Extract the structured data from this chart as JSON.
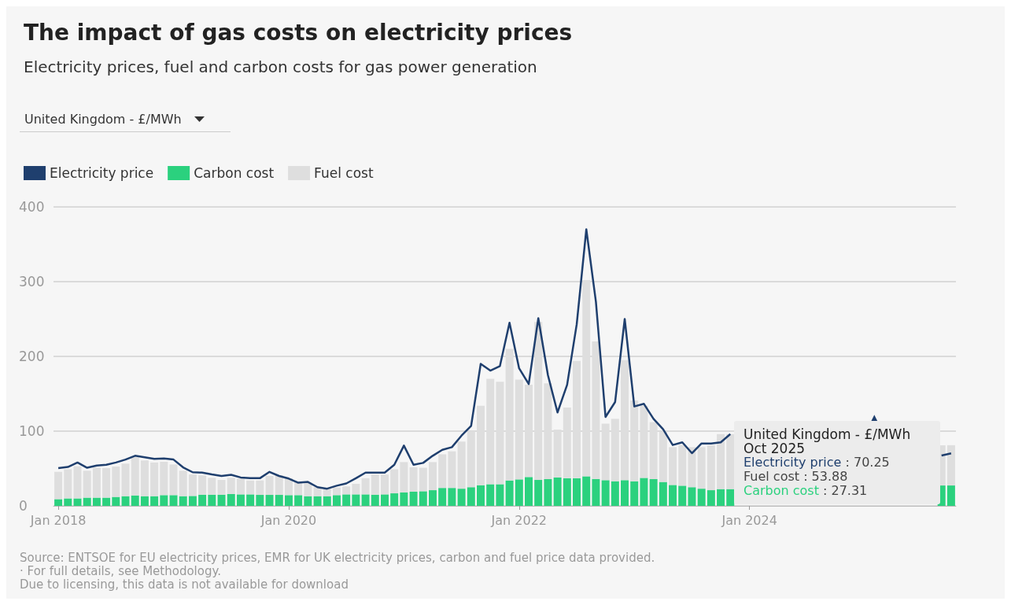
{
  "chart_data": {
    "type": "bar",
    "stacked": true,
    "title": "The impact of gas costs on electricity prices",
    "subtitle": "Electricity prices, fuel and carbon costs for gas power generation",
    "categories": [
      "Jan 2018",
      null,
      null,
      null,
      null,
      null,
      null,
      null,
      null,
      null,
      null,
      null,
      null,
      null,
      null,
      null,
      null,
      null,
      null,
      null,
      null,
      null,
      null,
      null,
      "Jan 2020",
      null,
      null,
      null,
      null,
      null,
      null,
      null,
      null,
      null,
      null,
      null,
      null,
      null,
      null,
      null,
      null,
      null,
      null,
      null,
      null,
      null,
      null,
      null,
      "Jan 2022",
      null,
      null,
      null,
      null,
      null,
      null,
      null,
      null,
      null,
      null,
      null,
      null,
      null,
      null,
      null,
      null,
      null,
      null,
      null,
      null,
      null,
      null,
      null,
      "Jan 2024",
      null,
      null,
      null,
      null,
      null,
      null,
      null,
      null,
      null,
      null,
      null,
      null,
      null,
      null,
      null,
      null,
      null,
      null,
      null,
      null,
      null
    ],
    "series": [
      {
        "name": "Carbon cost",
        "color": "#2bd17e",
        "values": [
          9,
          10,
          10,
          11,
          11,
          11,
          12,
          13,
          14,
          13,
          13,
          14.4,
          14.4,
          13,
          13.3,
          15,
          15,
          15,
          15.8,
          15.4,
          15.4,
          14.7,
          14.7,
          14.7,
          14.4,
          14.4,
          13,
          13,
          13,
          14.4,
          15.4,
          15.4,
          15.4,
          15,
          15.4,
          16.8,
          18,
          19,
          19.6,
          21,
          24,
          24,
          23,
          25,
          27.7,
          29,
          29,
          34,
          35.4,
          38.6,
          34.7,
          35.8,
          38,
          37,
          37,
          39.6,
          36,
          34.4,
          33,
          34.4,
          33,
          37.5,
          35.8,
          32,
          28,
          27,
          25,
          23,
          21,
          22.5,
          22.5,
          null,
          null,
          null,
          null,
          null,
          null,
          null,
          null,
          null,
          null,
          null,
          null,
          null,
          null,
          null,
          null,
          null,
          null,
          null,
          null,
          null,
          27.3,
          27.31
        ]
      },
      {
        "name": "Fuel cost",
        "color": "#dedede",
        "values": [
          36.6,
          39,
          43,
          36,
          40,
          39.5,
          40.6,
          43.5,
          51,
          47.7,
          45,
          44.6,
          41,
          34,
          28.7,
          25.7,
          22.5,
          19.7,
          21.7,
          21.1,
          18.6,
          19.3,
          25.3,
          26.3,
          22.6,
          18.6,
          18,
          12,
          10,
          10.1,
          10.6,
          14.1,
          21.6,
          27,
          26.6,
          32.2,
          40.6,
          32.6,
          31.4,
          37.6,
          45,
          49,
          63,
          75,
          106.3,
          141,
          137,
          176,
          133.6,
          123.4,
          211.3,
          128.2,
          64,
          94.6,
          157,
          262.4,
          184,
          75.6,
          83.5,
          160.6,
          108,
          96.5,
          76.2,
          67,
          50.6,
          54.4,
          53.6,
          55.6,
          60,
          73.5,
          73.5,
          null,
          null,
          null,
          null,
          null,
          null,
          null,
          null,
          null,
          null,
          null,
          null,
          null,
          null,
          null,
          null,
          null,
          null,
          null,
          null,
          null,
          53.7,
          53.88
        ]
      },
      {
        "name": "Electricity price",
        "type": "line",
        "color": "#1f3f6e",
        "values": [
          50.5,
          52,
          58,
          51,
          54,
          55,
          58,
          62,
          67,
          65,
          63,
          63.5,
          62,
          51.5,
          45,
          44.5,
          42,
          40,
          41.5,
          38,
          37,
          37,
          45.5,
          40,
          36.5,
          31,
          32,
          25,
          23,
          27,
          30,
          37,
          44.5,
          44.5,
          44.5,
          55,
          80.7,
          55,
          57.5,
          67,
          75,
          78.6,
          94,
          107,
          190,
          181,
          187,
          245,
          184,
          163,
          251,
          175,
          125,
          162,
          243,
          370,
          273,
          119,
          139,
          250,
          133,
          136.5,
          116.5,
          102.5,
          81.4,
          85,
          70.5,
          83.5,
          83.5,
          85,
          96,
          null,
          null,
          null,
          null,
          null,
          null,
          null,
          null,
          null,
          null,
          null,
          null,
          null,
          null,
          117,
          null,
          null,
          null,
          null,
          null,
          null,
          67.4,
          70.25
        ]
      }
    ],
    "ylim": [
      0,
      400
    ],
    "yticks": [
      0,
      100,
      200,
      300,
      400
    ],
    "grid": "y",
    "legend": "top left",
    "annotations": [
      "United Kingdom - £/MWh",
      "United Kingdom - £/MWh",
      "Oct 2025",
      "Electricity price : 70.25",
      "Fuel cost : 53.88",
      "Carbon cost : 27.31",
      "Source: ENTSOE for EU electricity prices, EMR for UK electricity prices, carbon and fuel price data provided.",
      "· For full details, see Methodology.",
      "Due to licensing, this data is not available for download"
    ]
  }
}
